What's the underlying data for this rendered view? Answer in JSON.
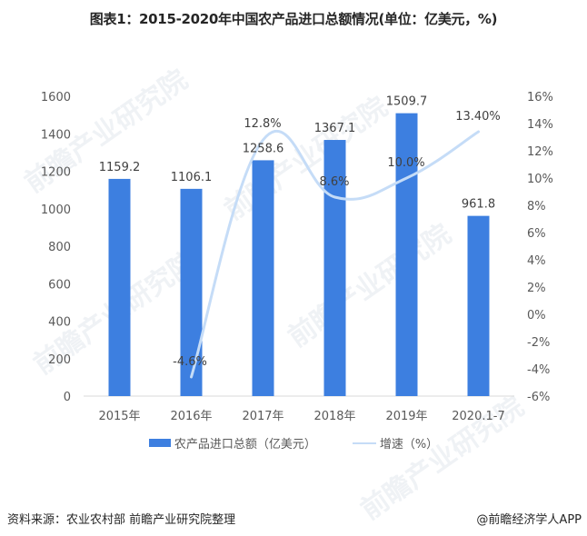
{
  "title": "图表1：2015-2020年中国农产品进口总额情况(单位：亿美元，%)",
  "legend": {
    "bar_label": "农产品进口总额（亿美元）",
    "line_label": "增速（%）"
  },
  "footer": {
    "source": "资料来源：农业农村部  前瞻产业研究院整理",
    "credit": "@前瞻经济学人APP"
  },
  "watermark": "前瞻产业研究院",
  "colors": {
    "bar": "#3D7FE0",
    "line": "#C5DCF7",
    "axis": "#D9D9D9"
  },
  "axes": {
    "left_ticks": [
      "1600",
      "1400",
      "1200",
      "1000",
      "800",
      "600",
      "400",
      "200",
      "0"
    ],
    "right_ticks": [
      "16%",
      "14%",
      "12%",
      "10%",
      "8%",
      "6%",
      "4%",
      "2%",
      "0%",
      "-2%",
      "-4%",
      "-6%"
    ]
  },
  "chart_data": {
    "type": "bar+line",
    "title": "图表1：2015-2020年中国农产品进口总额情况(单位：亿美元，%)",
    "categories": [
      "2015年",
      "2016年",
      "2017年",
      "2018年",
      "2019年",
      "2020.1-7"
    ],
    "series": [
      {
        "name": "农产品进口总额（亿美元）",
        "type": "bar",
        "axis": "left",
        "values": [
          1159.2,
          1106.1,
          1258.6,
          1367.1,
          1509.7,
          961.8
        ],
        "labels": [
          "1159.2",
          "1106.1",
          "1258.6",
          "1367.1",
          "1509.7",
          "961.8"
        ]
      },
      {
        "name": "增速（%）",
        "type": "line",
        "axis": "right",
        "values": [
          null,
          -4.6,
          12.8,
          8.6,
          10.0,
          13.4
        ],
        "labels": [
          "",
          "-4.6%",
          "12.8%",
          "8.6%",
          "10.0%",
          "13.40%"
        ]
      }
    ],
    "ylim_left": [
      0,
      1600
    ],
    "ylim_right": [
      -6,
      16
    ],
    "xlabel": "",
    "ylabel": "",
    "grid": false,
    "legend_position": "bottom"
  }
}
